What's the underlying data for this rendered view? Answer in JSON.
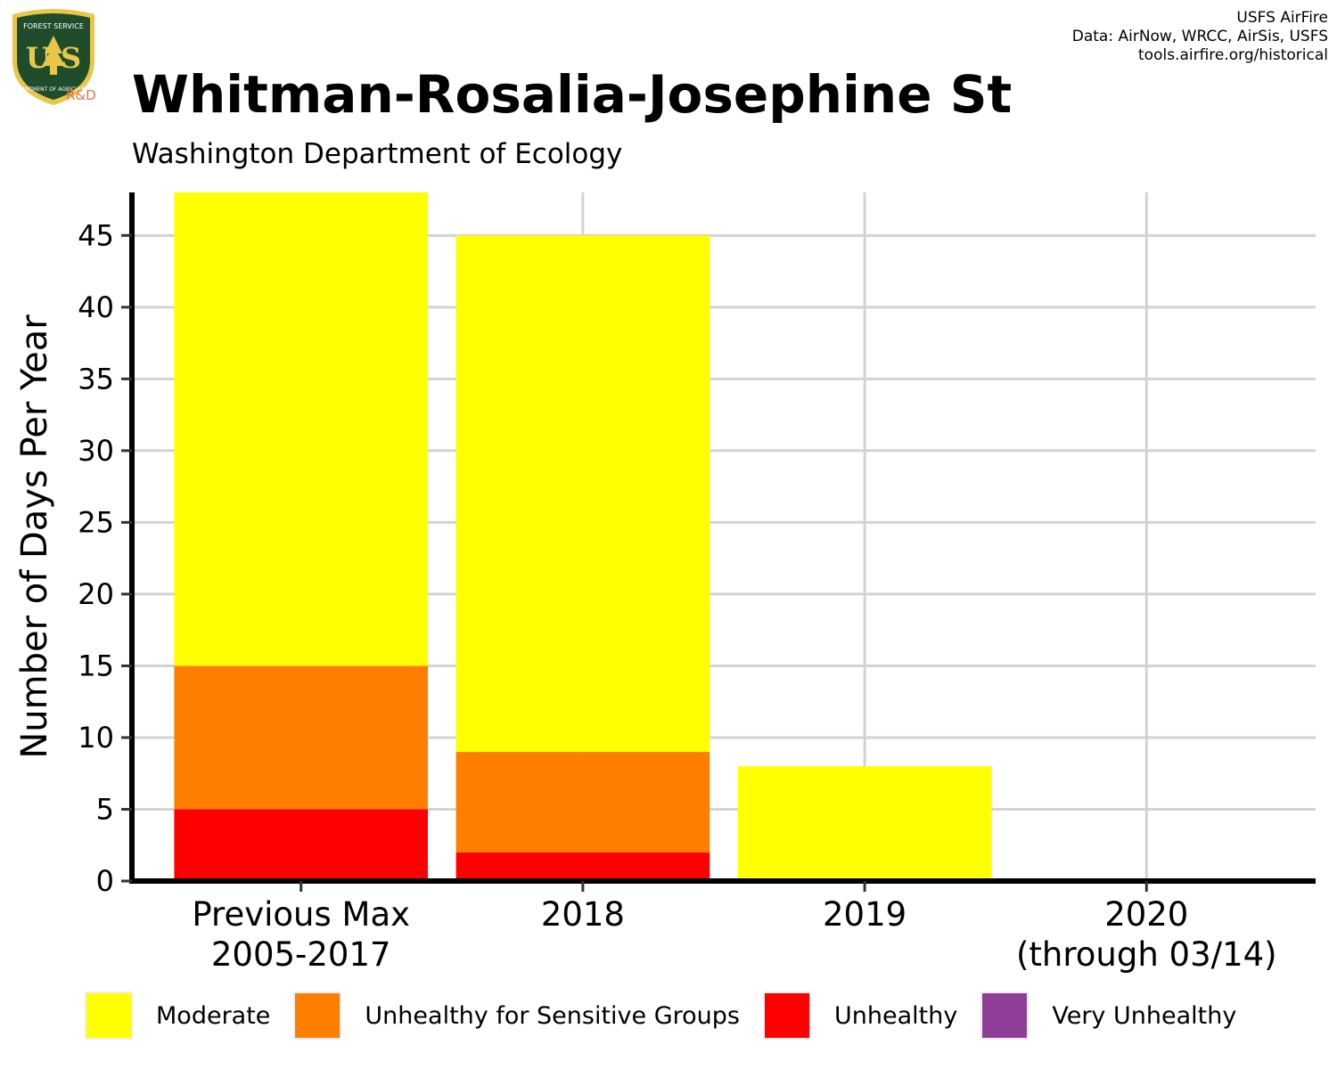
{
  "header": {
    "title": "Whitman-Rosalia-Josephine St",
    "subtitle": "Washington Department of Ecology",
    "credits": [
      "USFS AirFire",
      "Data: AirNow, WRCC, AirSis, USFS",
      "tools.airfire.org/historical"
    ]
  },
  "logo": {
    "text_us": "U S",
    "text_top": "FOREST SERVICE",
    "text_bottom": "DEPARTMENT OF AGRICULTURE",
    "text_rd": "R&D",
    "colors": {
      "shield": "#1f4d2b",
      "trim": "#e8c64a",
      "rd": "#e8704e"
    }
  },
  "chart_data": {
    "type": "bar",
    "stacked": true,
    "categories": [
      [
        "Previous Max",
        "2005-2017"
      ],
      [
        "2018"
      ],
      [
        "2019"
      ],
      [
        "2020",
        "(through 03/14)"
      ]
    ],
    "series": [
      {
        "name": "Unhealthy",
        "color": "#ff0000",
        "values": [
          5,
          2,
          0,
          0
        ]
      },
      {
        "name": "Unhealthy for Sensitive Groups",
        "color": "#ff7e00",
        "values": [
          10,
          7,
          0,
          0
        ]
      },
      {
        "name": "Moderate",
        "color": "#ffff00",
        "values": [
          33,
          36,
          8,
          0
        ]
      },
      {
        "name": "Very Unhealthy",
        "color": "#8f3f97",
        "values": [
          0,
          0,
          0,
          0
        ]
      }
    ],
    "title": "Whitman-Rosalia-Josephine St",
    "ylabel": "Number of Days Per Year",
    "xlabel": "",
    "ylim": [
      0,
      48
    ],
    "yticks": [
      0,
      5,
      10,
      15,
      20,
      25,
      30,
      35,
      40,
      45
    ],
    "grid": true,
    "legend_position": "bottom"
  },
  "legend": [
    {
      "label": "Moderate",
      "color": "#ffff00"
    },
    {
      "label": "Unhealthy for Sensitive Groups",
      "color": "#ff7e00"
    },
    {
      "label": "Unhealthy",
      "color": "#ff0000"
    },
    {
      "label": "Very Unhealthy",
      "color": "#8f3f97"
    }
  ]
}
